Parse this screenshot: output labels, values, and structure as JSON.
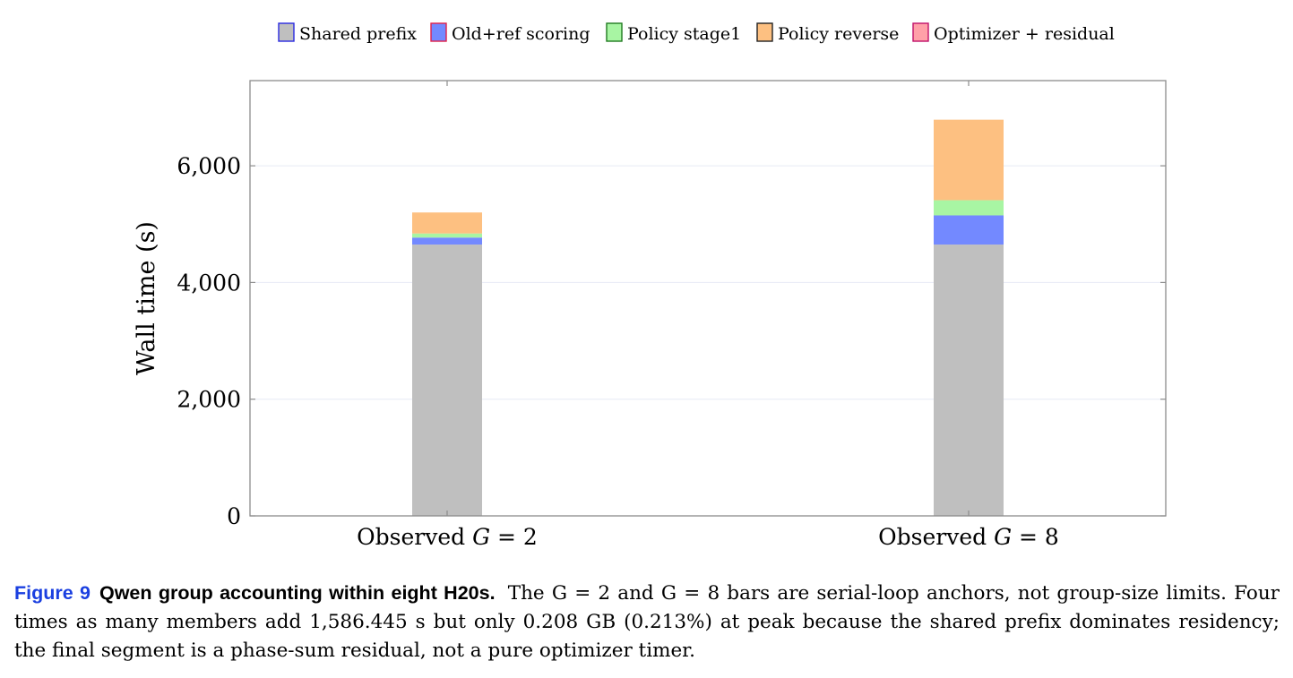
{
  "chart_data": {
    "type": "bar",
    "stacked": true,
    "categories": [
      "Observed G = 2",
      "Observed G = 8"
    ],
    "category_parts": [
      {
        "prefix": "Observed ",
        "var": "G",
        "rest": " = 2"
      },
      {
        "prefix": "Observed ",
        "var": "G",
        "rest": " = 8"
      }
    ],
    "series": [
      {
        "name": "Shared prefix",
        "color": "#bfbfbf",
        "border": "#2a2ae0",
        "values": [
          4650,
          4650
        ]
      },
      {
        "name": "Old+ref scoring",
        "color": "#7389ff",
        "border": "#e0204a",
        "values": [
          120,
          500
        ]
      },
      {
        "name": "Policy stage1",
        "color": "#a8f5a3",
        "border": "#207a20",
        "values": [
          70,
          260
        ]
      },
      {
        "name": "Policy reverse",
        "color": "#fdc081",
        "border": "#222222",
        "values": [
          360,
          1380
        ]
      },
      {
        "name": "Optimizer + residual",
        "color": "#ffa0a8",
        "border": "#c0106a",
        "values": [
          0,
          0
        ]
      }
    ],
    "ylabel": "Wall time (s)",
    "xlabel": "",
    "ylim": [
      0,
      7460
    ],
    "yticks": [
      0,
      2000,
      4000,
      6000
    ],
    "ytick_labels": [
      "0",
      "2,000",
      "4,000",
      "6,000"
    ],
    "grid": true,
    "legend_position": "top-center"
  },
  "caption": {
    "label": "Figure 9",
    "title": "Qwen group accounting within eight H20s.",
    "text": "The G = 2 and G = 8 bars are serial-loop anchors, not group-size limits. Four times as many members add 1,586.445 s but only 0.208 GB (0.213%) at peak because the shared prefix dominates residency; the final segment is a phase-sum residual, not a pure optimizer timer."
  }
}
